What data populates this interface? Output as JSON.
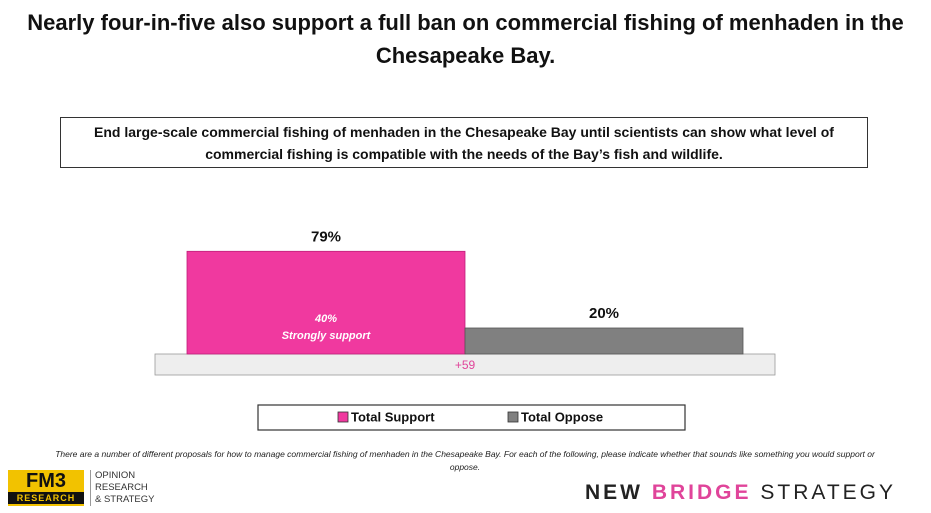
{
  "chart_data": {
    "type": "bar",
    "title": "Nearly four-in-five also support a full ban on commercial fishing of menhaden in the Chesapeake Bay.",
    "question": "End large-scale commercial fishing of menhaden in the Chesapeake Bay until scientists can show what level of commercial fishing is compatible with the needs of the Bay’s fish and wildlife.",
    "series": [
      {
        "name": "Total Support",
        "color": "#f0399f",
        "values": [
          79
        ],
        "value_labels": [
          "79%"
        ]
      },
      {
        "name": "Total Oppose",
        "color": "#808080",
        "values": [
          20
        ],
        "value_labels": [
          "20%"
        ]
      }
    ],
    "strongly_support": {
      "value": 40,
      "label": "40%",
      "text": "Strongly support"
    },
    "difference": {
      "value": 59,
      "label": "+59"
    },
    "footnote": "There are a number of different proposals for how to manage commercial fishing of menhaden in the Chesapeake Bay. For each of the following, please indicate whether that sounds like something you would support or oppose."
  },
  "logos": {
    "fm3": "FM3",
    "fm3_sub": "RESEARCH",
    "fm3_tag": [
      "OPINION",
      "RESEARCH",
      "& STRATEGY"
    ],
    "nbs": [
      "NEW",
      "BRIDGE",
      "STRATEGY"
    ]
  }
}
